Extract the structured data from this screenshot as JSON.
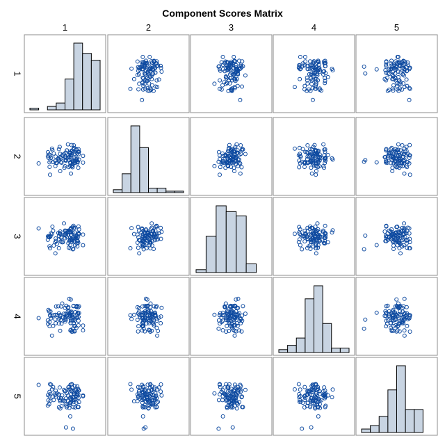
{
  "chart_data": {
    "type": "scatter",
    "title": "Component Scores Matrix",
    "variables": [
      "1",
      "2",
      "3",
      "4",
      "5"
    ],
    "diagonal": "histogram",
    "grid": false,
    "histograms": [
      {
        "variable": "1",
        "bins": 8,
        "percent": [
          1,
          0,
          2,
          4,
          18,
          39,
          33,
          29
        ]
      },
      {
        "variable": "2",
        "bins": 8,
        "percent": [
          2,
          13,
          46,
          31,
          3,
          3,
          1,
          1
        ]
      },
      {
        "variable": "3",
        "bins": 7,
        "percent": [
          2,
          25,
          46,
          42,
          39,
          6,
          0
        ]
      },
      {
        "variable": "4",
        "bins": 8,
        "percent": [
          2,
          5,
          10,
          37,
          46,
          20,
          3,
          3
        ]
      },
      {
        "variable": "5",
        "bins": 8,
        "percent": [
          3,
          6,
          14,
          37,
          58,
          20,
          20,
          0
        ]
      }
    ],
    "point_color": "#0e4aa0",
    "bar_color": "#c8d4e2",
    "n_points_per_panel": 100,
    "note": "off-diagonal panels are scatter plots of component score pairs"
  }
}
